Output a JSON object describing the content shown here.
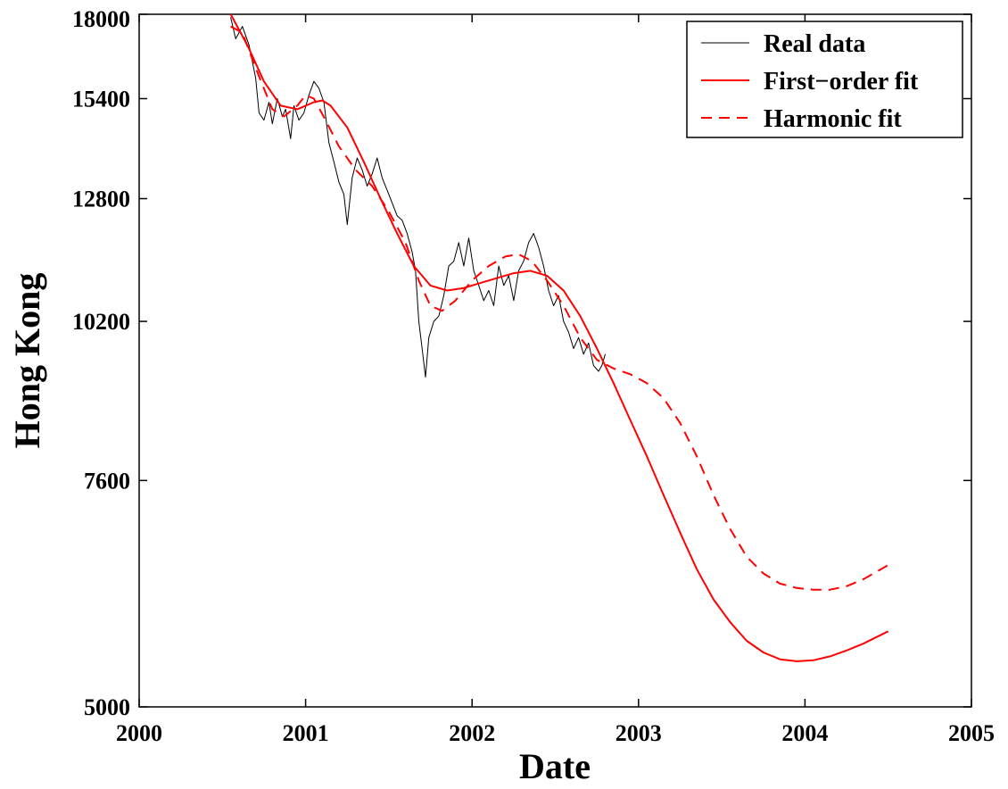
{
  "chart_data": {
    "type": "line",
    "xlabel": "Date",
    "ylabel": "Hong Kong",
    "xlim": [
      2000,
      2005
    ],
    "ylim": [
      5000,
      18000
    ],
    "yscale": "log",
    "x_ticks": [
      "2000",
      "2001",
      "2002",
      "2003",
      "2004",
      "2005"
    ],
    "y_ticks": [
      "5000",
      "7600",
      "10200",
      "12800",
      "15400",
      "18000"
    ],
    "grid": false,
    "legend_position": "top-right",
    "series": [
      {
        "name": "Real data",
        "style": "solid",
        "color": "#000000",
        "x": [
          2000.55,
          2000.58,
          2000.62,
          2000.66,
          2000.7,
          2000.72,
          2000.75,
          2000.78,
          2000.8,
          2000.83,
          2000.86,
          2000.88,
          2000.91,
          2000.93,
          2000.96,
          2000.99,
          2001.02,
          2001.05,
          2001.08,
          2001.11,
          2001.14,
          2001.17,
          2001.2,
          2001.23,
          2001.25,
          2001.28,
          2001.31,
          2001.34,
          2001.37,
          2001.4,
          2001.43,
          2001.46,
          2001.49,
          2001.52,
          2001.55,
          2001.58,
          2001.61,
          2001.64,
          2001.66,
          2001.68,
          2001.7,
          2001.72,
          2001.74,
          2001.77,
          2001.8,
          2001.83,
          2001.86,
          2001.89,
          2001.92,
          2001.95,
          2001.98,
          2002.01,
          2002.04,
          2002.07,
          2002.1,
          2002.13,
          2002.16,
          2002.19,
          2002.22,
          2002.25,
          2002.28,
          2002.31,
          2002.34,
          2002.37,
          2002.4,
          2002.43,
          2002.46,
          2002.49,
          2002.52,
          2002.55,
          2002.58,
          2002.61,
          2002.64,
          2002.67,
          2002.7,
          2002.73,
          2002.76,
          2002.78,
          2002.8
        ],
        "y": [
          17900,
          17200,
          17600,
          17000,
          16000,
          15000,
          14800,
          15300,
          14700,
          15400,
          14900,
          15100,
          14300,
          15200,
          14800,
          15000,
          15500,
          15900,
          15700,
          15300,
          14200,
          13700,
          13200,
          12900,
          12200,
          13300,
          13800,
          13500,
          13100,
          13400,
          13800,
          13300,
          13000,
          12700,
          12400,
          12300,
          12000,
          11600,
          11200,
          10200,
          9700,
          9200,
          9900,
          10200,
          10300,
          10700,
          11300,
          11400,
          11800,
          11300,
          11900,
          11200,
          10900,
          10600,
          10800,
          10500,
          11300,
          10900,
          11100,
          10600,
          11200,
          11400,
          11800,
          12000,
          11700,
          11300,
          10800,
          10500,
          10700,
          10200,
          10000,
          9700,
          9900,
          9600,
          9800,
          9400,
          9300,
          9400,
          9600
        ]
      },
      {
        "name": "First−order fit",
        "style": "solid",
        "color": "#ff0000",
        "x": [
          2000.55,
          2000.65,
          2000.75,
          2000.85,
          2000.95,
          2001.05,
          2001.1,
          2001.15,
          2001.25,
          2001.35,
          2001.45,
          2001.55,
          2001.65,
          2001.75,
          2001.85,
          2001.95,
          2002.05,
          2002.15,
          2002.25,
          2002.35,
          2002.45,
          2002.55,
          2002.65,
          2002.75,
          2002.85,
          2002.95,
          2003.05,
          2003.15,
          2003.25,
          2003.35,
          2003.45,
          2003.55,
          2003.65,
          2003.75,
          2003.85,
          2003.95,
          2004.05,
          2004.15,
          2004.25,
          2004.35,
          2004.5
        ],
        "y": [
          18000,
          17000,
          15900,
          15200,
          15100,
          15300,
          15350,
          15200,
          14600,
          13700,
          12800,
          12000,
          11300,
          10900,
          10800,
          10850,
          10950,
          11050,
          11150,
          11200,
          11100,
          10800,
          10300,
          9700,
          9100,
          8500,
          7950,
          7400,
          6900,
          6450,
          6100,
          5850,
          5650,
          5530,
          5460,
          5440,
          5450,
          5490,
          5550,
          5620,
          5750
        ]
      },
      {
        "name": "Harmonic fit",
        "style": "dashed",
        "color": "#ff0000",
        "x": [
          2000.55,
          2000.62,
          2000.7,
          2000.8,
          2000.87,
          2000.95,
          2001.0,
          2001.05,
          2001.12,
          2001.2,
          2001.3,
          2001.4,
          2001.5,
          2001.6,
          2001.68,
          2001.75,
          2001.82,
          2001.9,
          2002.0,
          2002.1,
          2002.2,
          2002.28,
          2002.36,
          2002.45,
          2002.55,
          2002.65,
          2002.75,
          2002.85,
          2002.95,
          2003.05,
          2003.15,
          2003.25,
          2003.35,
          2003.45,
          2003.55,
          2003.65,
          2003.75,
          2003.85,
          2003.95,
          2004.05,
          2004.15,
          2004.25,
          2004.35,
          2004.5
        ],
        "y": [
          17600,
          17400,
          16300,
          15100,
          14900,
          15200,
          15500,
          15400,
          14800,
          14100,
          13500,
          13100,
          12500,
          11800,
          11000,
          10500,
          10400,
          10600,
          11000,
          11300,
          11500,
          11550,
          11400,
          11000,
          10500,
          9900,
          9500,
          9350,
          9250,
          9100,
          8850,
          8450,
          7950,
          7400,
          6950,
          6600,
          6400,
          6280,
          6230,
          6210,
          6210,
          6250,
          6330,
          6500
        ]
      }
    ]
  }
}
